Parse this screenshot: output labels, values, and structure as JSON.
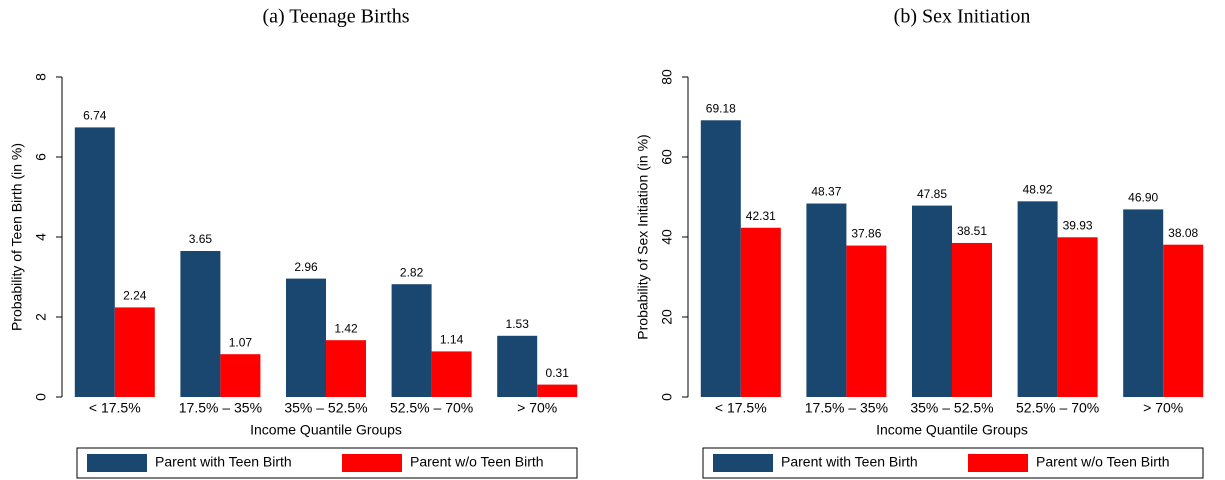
{
  "chart_data": [
    {
      "type": "bar",
      "title": "(a) Teenage Births",
      "x_label": "Income Quantile Groups",
      "y_label": "Probability of Teen Birth (in %)",
      "categories": [
        "< 17.5%",
        "17.5% – 35%",
        "35% – 52.5%",
        "52.5% – 70%",
        "> 70%"
      ],
      "series": [
        {
          "name": "Parent with Teen Birth",
          "color": "#1a476f",
          "values": [
            6.74,
            3.65,
            2.96,
            2.82,
            1.53
          ],
          "value_labels": [
            "6.74",
            "3.65",
            "2.96",
            "2.82",
            "1.53"
          ]
        },
        {
          "name": "Parent w/o Teen Birth",
          "color": "#ff0000",
          "values": [
            2.24,
            1.07,
            1.42,
            1.14,
            0.31
          ],
          "value_labels": [
            "2.24",
            "1.07",
            "1.42",
            "1.14",
            "0.31"
          ]
        }
      ],
      "ylim": [
        0,
        8
      ],
      "yticks": [
        0,
        2,
        4,
        6,
        8
      ],
      "grid": false,
      "legend": "bottom"
    },
    {
      "type": "bar",
      "title": "(b) Sex Initiation",
      "x_label": "Income Quantile Groups",
      "y_label": "Probability of Sex Initiation (in %)",
      "categories": [
        "< 17.5%",
        "17.5% – 35%",
        "35% – 52.5%",
        "52.5% – 70%",
        "> 70%"
      ],
      "series": [
        {
          "name": "Parent with Teen Birth",
          "color": "#1a476f",
          "values": [
            69.18,
            48.37,
            47.85,
            48.92,
            46.9
          ],
          "value_labels": [
            "69.18",
            "48.37",
            "47.85",
            "48.92",
            "46.90"
          ]
        },
        {
          "name": "Parent w/o Teen Birth",
          "color": "#ff0000",
          "values": [
            42.31,
            37.86,
            38.51,
            39.93,
            38.08
          ],
          "value_labels": [
            "42.31",
            "37.86",
            "38.51",
            "39.93",
            "38.08"
          ]
        }
      ],
      "ylim": [
        0,
        80
      ],
      "yticks": [
        0,
        20,
        40,
        60,
        80
      ],
      "grid": false,
      "legend": "bottom"
    }
  ]
}
